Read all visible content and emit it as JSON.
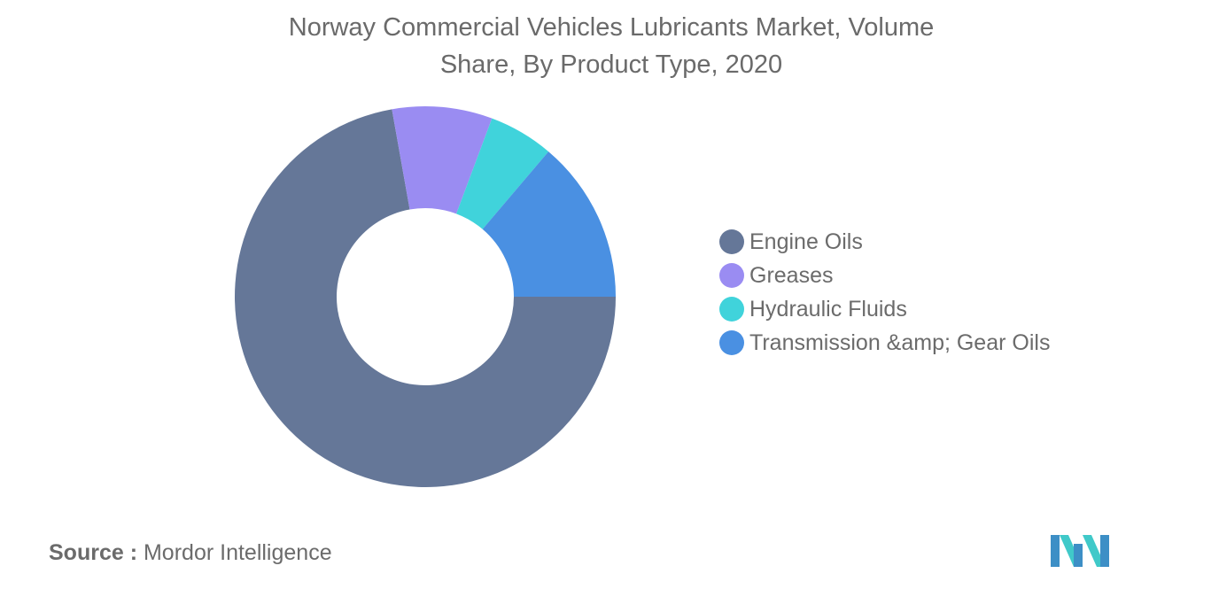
{
  "chart_data": {
    "type": "pie",
    "title": [
      "Norway Commercial Vehicles Lubricants Market, Volume",
      "Share, By Product Type, 2020"
    ],
    "series": [
      {
        "name": "Engine Oils",
        "value": 72.2,
        "color": "#657798"
      },
      {
        "name": "Greases",
        "value": 8.5,
        "color": "#9a8cf2"
      },
      {
        "name": "Hydraulic Fluids",
        "value": 5.5,
        "color": "#40d3db"
      },
      {
        "name": "Transmission &amp; Gear Oils",
        "value": 13.8,
        "color": "#4a90e2"
      }
    ],
    "legend_position": "right"
  },
  "source": {
    "label": "Source :",
    "text": "Mordor Intelligence"
  },
  "logo": {
    "icon": "mordor-intelligence-logo-icon",
    "colors": [
      "#3d8fc6",
      "#40c9c9"
    ]
  }
}
